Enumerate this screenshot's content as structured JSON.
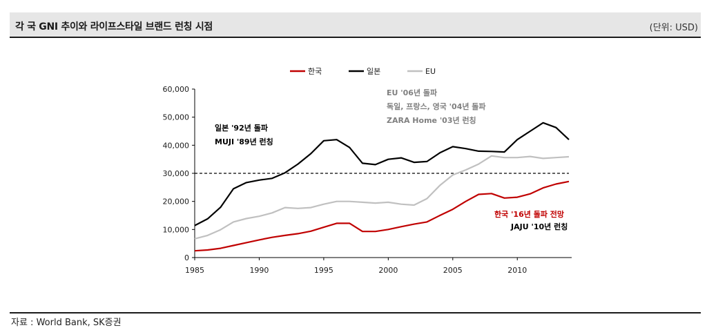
{
  "header": {
    "title": "각 국 GNI 추이와 라이프스타일 브랜드 런칭 시점",
    "unit": "(단위: USD)"
  },
  "footer": {
    "source": "자료 : World Bank, SK증권"
  },
  "chart_data": {
    "type": "line",
    "x_range": [
      1985,
      2014
    ],
    "y_range": [
      0,
      60000
    ],
    "x_ticks": [
      "1985",
      "1990",
      "1995",
      "2000",
      "2005",
      "2010"
    ],
    "y_ticks": [
      "0",
      "10,000",
      "20,000",
      "30,000",
      "40,000",
      "50,000",
      "60,000"
    ],
    "reference_line": {
      "value": 30000,
      "style": "dashed"
    },
    "legend_position": "top-center",
    "x": [
      1985,
      1986,
      1987,
      1988,
      1989,
      1990,
      1991,
      1992,
      1993,
      1994,
      1995,
      1996,
      1997,
      1998,
      1999,
      2000,
      2001,
      2002,
      2003,
      2004,
      2005,
      2006,
      2007,
      2008,
      2009,
      2010,
      2011,
      2012,
      2013,
      2014
    ],
    "series": [
      {
        "name": "한국",
        "color": "#c00000",
        "values": [
          2400,
          2700,
          3300,
          4300,
          5300,
          6300,
          7200,
          7900,
          8500,
          9400,
          10800,
          12200,
          12200,
          9300,
          9300,
          10000,
          11000,
          11900,
          12700,
          15000,
          17200,
          20000,
          22500,
          22800,
          21200,
          21500,
          22700,
          24800,
          26200,
          27100
        ]
      },
      {
        "name": "일본",
        "color": "#000000",
        "values": [
          11400,
          13800,
          17900,
          24500,
          26700,
          27600,
          28200,
          30200,
          33300,
          37000,
          41600,
          42000,
          39200,
          33600,
          33100,
          35000,
          35500,
          33900,
          34200,
          37300,
          39500,
          38800,
          37900,
          37800,
          37600,
          42000,
          45000,
          48000,
          46300,
          42000
        ]
      },
      {
        "name": "EU",
        "color": "#c0c0c0",
        "values": [
          6700,
          7900,
          9900,
          12700,
          13900,
          14700,
          15900,
          17800,
          17500,
          17800,
          19000,
          20000,
          20000,
          19700,
          19400,
          19700,
          19000,
          18700,
          21000,
          25700,
          29400,
          31200,
          33300,
          36200,
          35600,
          35600,
          36000,
          35300,
          35600,
          35900
        ]
      }
    ],
    "annotations": [
      {
        "id": "eu",
        "color": "#7f7f7f",
        "lines": [
          "EU '06년 돌파",
          "독일, 프랑스, 영국 '04년 돌파",
          "ZARA Home '03년 런칭"
        ]
      },
      {
        "id": "jp",
        "color": "#000000",
        "lines": [
          "일본 '92년 돌파",
          "MUJI '89년 런칭"
        ]
      },
      {
        "id": "kr",
        "color": "#c00000",
        "lines": [
          "한국 '16년 돌파 전망"
        ]
      },
      {
        "id": "kr2",
        "color": "#000000",
        "lines": [
          "JAJU '10년 런칭"
        ]
      }
    ]
  }
}
